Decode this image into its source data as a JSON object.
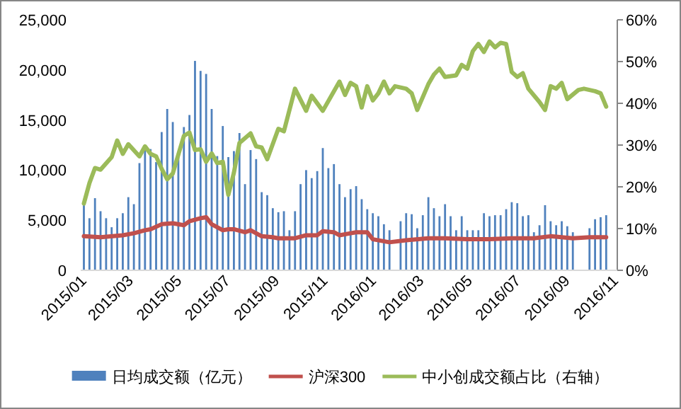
{
  "chart_data": {
    "type": "bar",
    "x": [
      "2015-01-02",
      "2015-01-09",
      "2015-01-16",
      "2015-01-23",
      "2015-01-30",
      "2015-02-06",
      "2015-02-13",
      "2015-02-20",
      "2015-02-27",
      "2015-03-06",
      "2015-03-13",
      "2015-03-20",
      "2015-03-27",
      "2015-04-03",
      "2015-04-10",
      "2015-04-17",
      "2015-04-24",
      "2015-05-01",
      "2015-05-08",
      "2015-05-15",
      "2015-05-22",
      "2015-05-29",
      "2015-06-05",
      "2015-06-12",
      "2015-06-19",
      "2015-06-26",
      "2015-07-03",
      "2015-07-10",
      "2015-07-17",
      "2015-07-24",
      "2015-07-31",
      "2015-08-07",
      "2015-08-14",
      "2015-08-21",
      "2015-08-28",
      "2015-09-04",
      "2015-09-11",
      "2015-09-18",
      "2015-09-25",
      "2015-10-02",
      "2015-10-09",
      "2015-10-16",
      "2015-10-23",
      "2015-10-30",
      "2015-11-06",
      "2015-11-13",
      "2015-11-20",
      "2015-11-27",
      "2015-12-04",
      "2015-12-11",
      "2015-12-18",
      "2015-12-25",
      "2016-01-01",
      "2016-01-08",
      "2016-01-15",
      "2016-01-22",
      "2016-01-29",
      "2016-02-05",
      "2016-02-12",
      "2016-02-19",
      "2016-02-26",
      "2016-03-04",
      "2016-03-11",
      "2016-03-18",
      "2016-03-25",
      "2016-04-01",
      "2016-04-08",
      "2016-04-15",
      "2016-04-22",
      "2016-04-29",
      "2016-05-06",
      "2016-05-13",
      "2016-05-20",
      "2016-05-27",
      "2016-06-03",
      "2016-06-10",
      "2016-06-17",
      "2016-06-24",
      "2016-07-01",
      "2016-07-08",
      "2016-07-15",
      "2016-07-22",
      "2016-07-29",
      "2016-08-05",
      "2016-08-12",
      "2016-08-19",
      "2016-08-26",
      "2016-09-02",
      "2016-09-09",
      "2016-09-16",
      "2016-09-23",
      "2016-09-30",
      "2016-10-07",
      "2016-10-14",
      "2016-10-21"
    ],
    "series": [
      {
        "name": "日均成交额（亿元）",
        "color": "#4f81bd",
        "values": [
          6600,
          5200,
          7200,
          5900,
          5200,
          4300,
          5200,
          5700,
          7300,
          6600,
          10700,
          12100,
          12100,
          10800,
          13800,
          16100,
          14800,
          11400,
          14300,
          15500,
          20900,
          19900,
          19600,
          16100,
          11400,
          14400,
          11300,
          11900,
          13700,
          8600,
          12000,
          11100,
          7800,
          7500,
          6200,
          5800,
          5900,
          4000,
          5900,
          8600,
          10000,
          9200,
          9900,
          12200,
          10200,
          10600,
          8600,
          7300,
          8100,
          8400,
          7100,
          6100,
          5700,
          5400,
          4600,
          4000,
          null,
          4900,
          5700,
          5600,
          4200,
          5500,
          7300,
          6200,
          5400,
          6600,
          5400,
          4000,
          5400,
          4000,
          4000,
          4000,
          5700,
          5400,
          5500,
          5500,
          6100,
          6800,
          6700,
          5400,
          5500,
          3800,
          4500,
          6500,
          4900,
          4500,
          4900,
          4400,
          3800,
          null,
          null,
          4200,
          5100,
          5300,
          5500
        ]
      },
      {
        "name": "沪深300",
        "type": "line",
        "color": "#c0504d",
        "x": [
          "2015-01-02",
          "2015-01-23",
          "2015-02-20",
          "2015-03-06",
          "2015-03-20",
          "2015-03-27",
          "2015-04-10",
          "2015-04-24",
          "2015-05-08",
          "2015-05-15",
          "2015-05-29",
          "2015-06-05",
          "2015-06-12",
          "2015-06-26",
          "2015-07-03",
          "2015-07-10",
          "2015-07-24",
          "2015-07-31",
          "2015-08-14",
          "2015-08-28",
          "2015-09-04",
          "2015-09-25",
          "2015-10-09",
          "2015-10-23",
          "2015-10-30",
          "2015-11-13",
          "2015-11-20",
          "2015-12-04",
          "2015-12-11",
          "2015-12-25",
          "2016-01-01",
          "2016-01-22",
          "2016-02-12",
          "2016-03-11",
          "2016-04-01",
          "2016-04-29",
          "2016-05-27",
          "2016-06-24",
          "2016-07-22",
          "2016-08-12",
          "2016-09-09",
          "2016-09-30",
          "2016-10-21"
        ],
        "values": [
          3400,
          3300,
          3500,
          3700,
          4000,
          4100,
          4600,
          4700,
          4500,
          4900,
          5200,
          5300,
          4600,
          4000,
          4100,
          4100,
          3800,
          4000,
          3400,
          3300,
          3200,
          3200,
          3500,
          3500,
          3900,
          3800,
          3500,
          3700,
          3800,
          3800,
          3100,
          2800,
          3000,
          3200,
          3200,
          3100,
          3100,
          3200,
          3200,
          3400,
          3200,
          3300,
          3300
        ]
      },
      {
        "name": "中小创成交额占比（右轴）",
        "type": "line",
        "axis": "y2",
        "color": "#9bbb59",
        "x": [
          "2015-01-02",
          "2015-01-09",
          "2015-01-16",
          "2015-01-23",
          "2015-02-06",
          "2015-02-13",
          "2015-02-20",
          "2015-02-27",
          "2015-03-13",
          "2015-03-20",
          "2015-03-27",
          "2015-04-03",
          "2015-04-10",
          "2015-04-17",
          "2015-04-24",
          "2015-05-08",
          "2015-05-15",
          "2015-05-22",
          "2015-05-29",
          "2015-06-05",
          "2015-06-12",
          "2015-06-19",
          "2015-06-26",
          "2015-07-03",
          "2015-07-10",
          "2015-07-17",
          "2015-07-31",
          "2015-08-07",
          "2015-08-14",
          "2015-08-21",
          "2015-09-04",
          "2015-09-11",
          "2015-09-25",
          "2015-10-09",
          "2015-10-16",
          "2015-10-30",
          "2015-11-20",
          "2015-11-27",
          "2015-12-04",
          "2015-12-11",
          "2015-12-18",
          "2015-12-25",
          "2016-01-01",
          "2016-01-08",
          "2016-01-15",
          "2016-01-22",
          "2016-01-29",
          "2016-02-12",
          "2016-02-19",
          "2016-02-26",
          "2016-03-11",
          "2016-03-18",
          "2016-03-25",
          "2016-04-01",
          "2016-04-15",
          "2016-04-22",
          "2016-04-29",
          "2016-05-06",
          "2016-05-13",
          "2016-05-20",
          "2016-05-27",
          "2016-06-03",
          "2016-06-10",
          "2016-06-17",
          "2016-06-24",
          "2016-07-01",
          "2016-07-08",
          "2016-07-15",
          "2016-07-29",
          "2016-08-05",
          "2016-08-12",
          "2016-08-19",
          "2016-08-26",
          "2016-09-02",
          "2016-09-16",
          "2016-09-23",
          "2016-10-07",
          "2016-10-14",
          "2016-10-21"
        ],
        "values": [
          16.0,
          20.9,
          24.5,
          24.1,
          27.1,
          31.1,
          27.9,
          30.2,
          27.3,
          29.7,
          27.9,
          27.3,
          24.3,
          21.8,
          23.2,
          32.2,
          33.0,
          28.8,
          29.0,
          26.0,
          28.0,
          25.7,
          26.0,
          18.1,
          23.4,
          30.5,
          32.8,
          29.7,
          29.4,
          26.6,
          33.9,
          33.3,
          43.5,
          38.2,
          41.8,
          38.2,
          45.2,
          42.0,
          44.9,
          44.1,
          39.0,
          44.1,
          40.7,
          42.4,
          45.2,
          42.4,
          44.1,
          43.5,
          42.4,
          38.4,
          44.6,
          46.9,
          48.3,
          46.3,
          46.7,
          49.2,
          48.3,
          52.5,
          54.2,
          52.3,
          54.8,
          53.4,
          54.5,
          54.2,
          47.5,
          46.3,
          47.2,
          43.5,
          40.3,
          38.4,
          44.1,
          43.5,
          44.9,
          41.0,
          43.2,
          43.5,
          42.9,
          42.4,
          39.2
        ]
      }
    ],
    "xlim": [
      "2014-12-29",
      "2016-11-04"
    ],
    "xticks": [
      {
        "value": "2015-01-01",
        "label": "2015/01"
      },
      {
        "value": "2015-03-01",
        "label": "2015/03"
      },
      {
        "value": "2015-05-01",
        "label": "2015/05"
      },
      {
        "value": "2015-07-01",
        "label": "2015/07"
      },
      {
        "value": "2015-09-01",
        "label": "2015/09"
      },
      {
        "value": "2015-11-01",
        "label": "2015/11"
      },
      {
        "value": "2016-01-01",
        "label": "2016/01"
      },
      {
        "value": "2016-03-01",
        "label": "2016/03"
      },
      {
        "value": "2016-05-01",
        "label": "2016/05"
      },
      {
        "value": "2016-07-01",
        "label": "2016/07"
      },
      {
        "value": "2016-09-01",
        "label": "2016/09"
      },
      {
        "value": "2016-11-01",
        "label": "2016/11"
      }
    ],
    "ylim": [
      0,
      25000
    ],
    "yticks": [
      0,
      {
        "value": 5000,
        "label": "5,000"
      },
      {
        "value": 10000,
        "label": "10,000"
      },
      {
        "value": 15000,
        "label": "15,000"
      },
      {
        "value": 20000,
        "label": "20,000"
      },
      {
        "value": 25000,
        "label": "25,000"
      }
    ],
    "y2lim": [
      0,
      60
    ],
    "y2ticks": [
      {
        "value": 0,
        "label": "0%"
      },
      {
        "value": 10,
        "label": "10%"
      },
      {
        "value": 20,
        "label": "20%"
      },
      {
        "value": 30,
        "label": "30%"
      },
      {
        "value": 40,
        "label": "40%"
      },
      {
        "value": 50,
        "label": "50%"
      },
      {
        "value": 60,
        "label": "60%"
      }
    ],
    "grid": false,
    "legend": "bottom"
  }
}
